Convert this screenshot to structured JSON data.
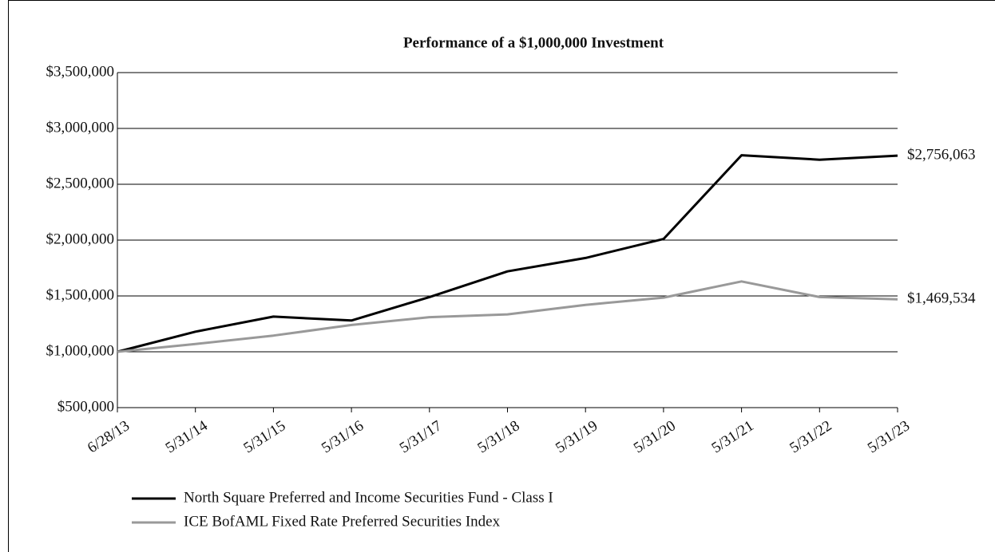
{
  "chart_data": {
    "type": "line",
    "title": "Performance of a $1,000,000 Investment",
    "categories": [
      "6/28/13",
      "5/31/14",
      "5/31/15",
      "5/31/16",
      "5/31/17",
      "5/31/18",
      "5/31/19",
      "5/31/20",
      "5/31/21",
      "5/31/22",
      "5/31/23"
    ],
    "series": [
      {
        "name": "North Square Preferred and Income Securities Fund - Class I",
        "color": "#000000",
        "values": [
          1000000,
          1180000,
          1315000,
          1280000,
          1490000,
          1720000,
          1840000,
          2010000,
          2760000,
          2720000,
          2756063
        ],
        "value_labels": [
          null,
          null,
          null,
          null,
          null,
          null,
          null,
          null,
          null,
          null,
          "$2,756,063"
        ]
      },
      {
        "name": "ICE BofAML Fixed Rate Preferred Securities Index",
        "color": "#999999",
        "values": [
          1000000,
          1070000,
          1145000,
          1240000,
          1310000,
          1335000,
          1420000,
          1485000,
          1630000,
          1490000,
          1469534
        ],
        "value_labels": [
          null,
          null,
          null,
          null,
          null,
          null,
          null,
          null,
          null,
          null,
          "$1,469,534"
        ]
      }
    ],
    "ylim": [
      500000,
      3500000
    ],
    "yticks": [
      {
        "value": 500000,
        "label": "$500,000"
      },
      {
        "value": 1000000,
        "label": "$1,000,000"
      },
      {
        "value": 1500000,
        "label": "$1,500,000"
      },
      {
        "value": 2000000,
        "label": "$2,000,000"
      },
      {
        "value": 2500000,
        "label": "$2,500,000"
      },
      {
        "value": 3000000,
        "label": "$3,000,000"
      },
      {
        "value": 3500000,
        "label": "$3,500,000"
      }
    ],
    "grid": true
  }
}
